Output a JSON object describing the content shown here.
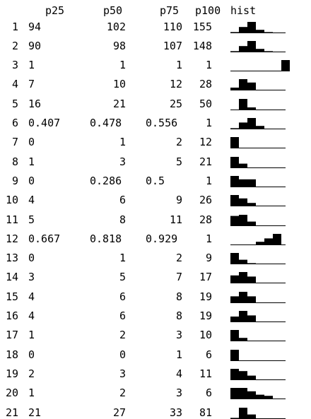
{
  "headers": {
    "p25": "p25",
    "p50": "p50",
    "p75": "p75",
    "p100": "p100",
    "hist": "hist"
  },
  "rows": [
    {
      "idx": "1",
      "p25": "94",
      "p50": "102",
      "p75": "110",
      "p100": "155",
      "hist": [
        0.1,
        0.55,
        1.0,
        0.3,
        0.1,
        0,
        0,
        0
      ]
    },
    {
      "idx": "2",
      "p25": "90",
      "p50": "98",
      "p75": "107",
      "p100": "148",
      "hist": [
        0.1,
        0.55,
        1.0,
        0.3,
        0.1,
        0,
        0,
        0
      ]
    },
    {
      "idx": "3",
      "p25": "1",
      "p50": "1",
      "p75": "1",
      "p100": "1",
      "hist": [
        0,
        0,
        0,
        0,
        0,
        0,
        1.0,
        0
      ]
    },
    {
      "idx": "4",
      "p25": "7",
      "p50": "10",
      "p75": "12",
      "p100": "28",
      "hist": [
        0.25,
        1.0,
        0.7,
        0.05,
        0,
        0,
        0,
        0
      ]
    },
    {
      "idx": "5",
      "p25": "16",
      "p50": "21",
      "p75": "25",
      "p100": "50",
      "hist": [
        0.05,
        1.0,
        0.25,
        0.05,
        0,
        0,
        0,
        0
      ]
    },
    {
      "idx": "6",
      "p25": "0.407",
      "p50": "0.478",
      "p75": "0.556",
      "p100": "1",
      "hist": [
        0.1,
        0.6,
        1.0,
        0.3,
        0.05,
        0,
        0,
        0
      ]
    },
    {
      "idx": "7",
      "p25": "0",
      "p50": "1",
      "p75": "2",
      "p100": "12",
      "hist": [
        1.0,
        0.05,
        0.02,
        0,
        0,
        0,
        0,
        0
      ]
    },
    {
      "idx": "8",
      "p25": "1",
      "p50": "3",
      "p75": "5",
      "p100": "21",
      "hist": [
        1.0,
        0.4,
        0.05,
        0.02,
        0,
        0,
        0,
        0
      ]
    },
    {
      "idx": "9",
      "p25": "0",
      "p50": "0.286",
      "p75": "0.5",
      "p100": "1",
      "hist": [
        1.0,
        0.7,
        0.7,
        0.05,
        0,
        0,
        0,
        0
      ]
    },
    {
      "idx": "10",
      "p25": "4",
      "p50": "6",
      "p75": "9",
      "p100": "26",
      "hist": [
        1.0,
        0.7,
        0.3,
        0.05,
        0,
        0,
        0,
        0
      ]
    },
    {
      "idx": "11",
      "p25": "5",
      "p50": "8",
      "p75": "11",
      "p100": "28",
      "hist": [
        0.9,
        1.0,
        0.4,
        0.05,
        0,
        0,
        0,
        0
      ]
    },
    {
      "idx": "12",
      "p25": "0.667",
      "p50": "0.818",
      "p75": "0.929",
      "p100": "1",
      "hist": [
        0,
        0,
        0.05,
        0.3,
        0.6,
        1.0,
        0,
        0
      ]
    },
    {
      "idx": "13",
      "p25": "0",
      "p50": "1",
      "p75": "2",
      "p100": "9",
      "hist": [
        1.0,
        0.4,
        0.1,
        0.05,
        0,
        0,
        0,
        0
      ]
    },
    {
      "idx": "14",
      "p25": "3",
      "p50": "5",
      "p75": "7",
      "p100": "17",
      "hist": [
        0.7,
        1.0,
        0.6,
        0.05,
        0,
        0,
        0,
        0
      ]
    },
    {
      "idx": "15",
      "p25": "4",
      "p50": "6",
      "p75": "8",
      "p100": "19",
      "hist": [
        0.6,
        1.0,
        0.6,
        0.05,
        0,
        0,
        0,
        0
      ]
    },
    {
      "idx": "16",
      "p25": "4",
      "p50": "6",
      "p75": "8",
      "p100": "19",
      "hist": [
        0.5,
        1.0,
        0.6,
        0.05,
        0,
        0,
        0,
        0
      ]
    },
    {
      "idx": "17",
      "p25": "1",
      "p50": "2",
      "p75": "3",
      "p100": "10",
      "hist": [
        1.0,
        0.3,
        0.05,
        0,
        0,
        0,
        0,
        0
      ]
    },
    {
      "idx": "18",
      "p25": "0",
      "p50": "0",
      "p75": "1",
      "p100": "6",
      "hist": [
        1.0,
        0.05,
        0.02,
        0,
        0,
        0,
        0,
        0
      ]
    },
    {
      "idx": "19",
      "p25": "2",
      "p50": "3",
      "p75": "4",
      "p100": "11",
      "hist": [
        1.0,
        0.8,
        0.4,
        0.05,
        0,
        0,
        0,
        0
      ]
    },
    {
      "idx": "20",
      "p25": "1",
      "p50": "2",
      "p75": "3",
      "p100": "6",
      "hist": [
        1.0,
        1.0,
        0.7,
        0.4,
        0.3,
        0,
        0,
        0
      ]
    },
    {
      "idx": "21",
      "p25": "21",
      "p50": "27",
      "p75": "33",
      "p100": "81",
      "hist": [
        0.1,
        1.0,
        0.4,
        0.05,
        0,
        0,
        0,
        0
      ]
    }
  ]
}
